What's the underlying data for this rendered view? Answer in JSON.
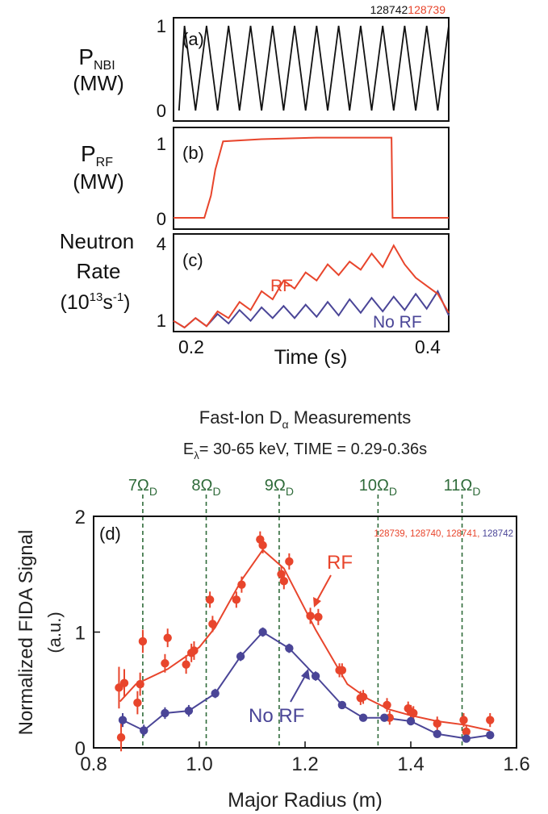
{
  "colors": {
    "rf": "#e8452c",
    "norf": "#4a4597",
    "black": "#111111",
    "guide": "#2f6b3a"
  },
  "panel_a": {
    "label": "(a)",
    "ylabel_main": "P",
    "ylabel_sub": "NBI",
    "ylabel_unit": "(MW)",
    "shot_black": "128742",
    "shot_red": "128739"
  },
  "panel_b": {
    "label": "(b)",
    "ylabel_main": "P",
    "ylabel_sub": "RF",
    "ylabel_unit": "(MW)"
  },
  "panel_c": {
    "label": "(c)",
    "ylabel_line1": "Neutron",
    "ylabel_line2": "Rate",
    "ylabel_line3_pre": "(10",
    "ylabel_line3_sup1": "13",
    "ylabel_line3_mid": "s",
    "ylabel_line3_sup2": "-1",
    "ylabel_line3_post": ")",
    "rf_label": "RF",
    "norf_label": "No RF",
    "xlabel": "Time (s)"
  },
  "panel_d": {
    "title_main": "Fast-Ion D",
    "title_sub": "α",
    "title_post": " Measurements",
    "subtitle_main": "E",
    "subtitle_sub": "λ",
    "subtitle_post": "= 30-65 keV, TIME = 0.29-0.36s",
    "label": "(d)",
    "ylabel": "Normalized FIDA Signal",
    "yunit": "(a.u.)",
    "xlabel": "Major Radius (m)",
    "shots_red": "128739, 128740, 128741,",
    "shots_blue": "128742",
    "rf_label": "RF",
    "norf_label": "No RF",
    "harmonics": [
      {
        "num": "7",
        "x": 0.893
      },
      {
        "num": "8",
        "x": 1.013
      },
      {
        "num": "9",
        "x": 1.151
      },
      {
        "num": "10",
        "x": 1.338
      },
      {
        "num": "11",
        "x": 1.497
      }
    ],
    "harmonic_symbol": "Ω",
    "harmonic_sub": "D"
  },
  "chart_data": [
    {
      "type": "line",
      "panel": "a",
      "ylabel": "PNBI (MW)",
      "xlim": [
        0.17,
        0.42
      ],
      "ylim": [
        0,
        1
      ],
      "yticks": [
        0,
        1
      ],
      "series": [
        {
          "name": "128742",
          "description": "square-wave NBI modulation, ~1 MW on/off, 10 ms period",
          "x": [
            0.175,
            0.18,
            0.19,
            0.2,
            0.21,
            0.22,
            0.23,
            0.24,
            0.25,
            0.26,
            0.27,
            0.28,
            0.29,
            0.3,
            0.31,
            0.32,
            0.33,
            0.34,
            0.35,
            0.36,
            0.37,
            0.38,
            0.39,
            0.4,
            0.41,
            0.42
          ],
          "y": [
            0,
            1,
            0,
            1,
            0,
            1,
            0,
            1,
            0,
            1,
            0,
            1,
            0,
            1,
            0,
            1,
            0,
            1,
            0,
            1,
            0,
            1,
            0,
            1,
            0,
            1
          ]
        }
      ]
    },
    {
      "type": "line",
      "panel": "b",
      "ylabel": "PRF (MW)",
      "xlim": [
        0.17,
        0.42
      ],
      "ylim": [
        0,
        1.1
      ],
      "yticks": [
        0,
        1
      ],
      "series": [
        {
          "name": "128739",
          "x": [
            0.17,
            0.198,
            0.204,
            0.208,
            0.215,
            0.25,
            0.3,
            0.34,
            0.368,
            0.369,
            0.42
          ],
          "y": [
            0,
            0,
            0.3,
            0.65,
            1.03,
            1.06,
            1.08,
            1.08,
            1.08,
            0,
            0
          ]
        }
      ]
    },
    {
      "type": "line",
      "panel": "c",
      "ylabel": "Neutron Rate (10^13 s^-1)",
      "xlabel": "Time (s)",
      "xlim": [
        0.17,
        0.42
      ],
      "ylim": [
        0.8,
        4.2
      ],
      "xticks": [
        0.2,
        0.4
      ],
      "yticks": [
        1,
        4
      ],
      "series": [
        {
          "name": "RF",
          "x": [
            0.17,
            0.18,
            0.19,
            0.2,
            0.21,
            0.22,
            0.23,
            0.24,
            0.25,
            0.26,
            0.27,
            0.28,
            0.29,
            0.3,
            0.31,
            0.32,
            0.33,
            0.34,
            0.35,
            0.36,
            0.37,
            0.38,
            0.39,
            0.4,
            0.41,
            0.42
          ],
          "y": [
            1.1,
            0.85,
            1.2,
            0.9,
            1.45,
            1.2,
            1.8,
            1.5,
            2.2,
            1.9,
            2.6,
            2.3,
            2.9,
            2.6,
            3.2,
            2.8,
            3.3,
            3.0,
            3.6,
            3.1,
            3.9,
            3.2,
            2.7,
            2.4,
            2.1,
            1.4
          ]
        },
        {
          "name": "No RF",
          "x": [
            0.17,
            0.18,
            0.19,
            0.2,
            0.21,
            0.22,
            0.23,
            0.24,
            0.25,
            0.26,
            0.27,
            0.28,
            0.29,
            0.3,
            0.31,
            0.32,
            0.33,
            0.34,
            0.35,
            0.36,
            0.37,
            0.38,
            0.39,
            0.4,
            0.41,
            0.42
          ],
          "y": [
            1.1,
            0.85,
            1.2,
            0.9,
            1.35,
            1.0,
            1.5,
            1.1,
            1.6,
            1.2,
            1.65,
            1.2,
            1.7,
            1.25,
            1.8,
            1.3,
            1.9,
            1.4,
            1.95,
            1.45,
            2.0,
            1.5,
            2.1,
            1.55,
            2.2,
            1.3
          ]
        }
      ]
    },
    {
      "type": "scatter",
      "panel": "d",
      "title": "Fast-Ion Dα Measurements",
      "subtitle": "Eλ= 30-65 keV, TIME = 0.29-0.36s",
      "xlabel": "Major Radius (m)",
      "ylabel": "Normalized FIDA Signal (a.u.)",
      "xlim": [
        0.8,
        1.6
      ],
      "ylim": [
        0,
        2
      ],
      "xticks": [
        0.8,
        1.0,
        1.2,
        1.4,
        1.6
      ],
      "yticks": [
        0,
        1,
        2
      ],
      "rf_points": {
        "x": [
          0.848,
          0.852,
          0.858,
          0.883,
          0.888,
          0.893,
          0.935,
          0.94,
          0.975,
          0.985,
          0.99,
          1.02,
          1.025,
          1.07,
          1.08,
          1.115,
          1.12,
          1.155,
          1.16,
          1.17,
          1.21,
          1.225,
          1.265,
          1.27,
          1.305,
          1.31,
          1.355,
          1.36,
          1.395,
          1.4,
          1.405,
          1.45,
          1.5,
          1.505,
          1.55
        ],
        "y": [
          0.52,
          0.09,
          0.56,
          0.39,
          0.55,
          0.92,
          0.73,
          0.95,
          0.72,
          0.82,
          0.84,
          1.28,
          1.07,
          1.28,
          1.41,
          1.8,
          1.75,
          1.5,
          1.44,
          1.61,
          1.14,
          1.13,
          0.67,
          0.67,
          0.43,
          0.44,
          0.37,
          0.26,
          0.34,
          0.31,
          0.3,
          0.21,
          0.24,
          0.14,
          0.24
        ],
        "yerr": [
          0.18,
          0.12,
          0.12,
          0.1,
          0.1,
          0.1,
          0.08,
          0.08,
          0.08,
          0.08,
          0.08,
          0.07,
          0.07,
          0.07,
          0.07,
          0.07,
          0.07,
          0.07,
          0.07,
          0.07,
          0.07,
          0.07,
          0.06,
          0.06,
          0.06,
          0.06,
          0.06,
          0.06,
          0.06,
          0.06,
          0.06,
          0.06,
          0.06,
          0.06,
          0.06
        ]
      },
      "rf_fit": {
        "x": [
          0.85,
          0.88,
          0.94,
          1.0,
          1.03,
          1.08,
          1.12,
          1.16,
          1.22,
          1.28,
          1.32,
          1.36,
          1.4,
          1.45,
          1.5,
          1.55
        ],
        "y": [
          0.4,
          0.55,
          0.68,
          0.87,
          1.04,
          1.45,
          1.71,
          1.55,
          1.02,
          0.55,
          0.42,
          0.33,
          0.28,
          0.23,
          0.2,
          0.15
        ]
      },
      "norf_points": {
        "x": [
          0.855,
          0.895,
          0.935,
          0.98,
          1.03,
          1.078,
          1.12,
          1.17,
          1.22,
          1.27,
          1.31,
          1.35,
          1.4,
          1.45,
          1.505,
          1.55
        ],
        "y": [
          0.24,
          0.15,
          0.3,
          0.32,
          0.47,
          0.79,
          1.0,
          0.86,
          0.62,
          0.37,
          0.26,
          0.26,
          0.23,
          0.12,
          0.08,
          0.11
        ],
        "yerr": [
          0.06,
          0.05,
          0.05,
          0.05,
          0.04,
          0.04,
          0.04,
          0.04,
          0.04,
          0.03,
          0.03,
          0.03,
          0.03,
          0.03,
          0.03,
          0.03
        ]
      }
    }
  ]
}
